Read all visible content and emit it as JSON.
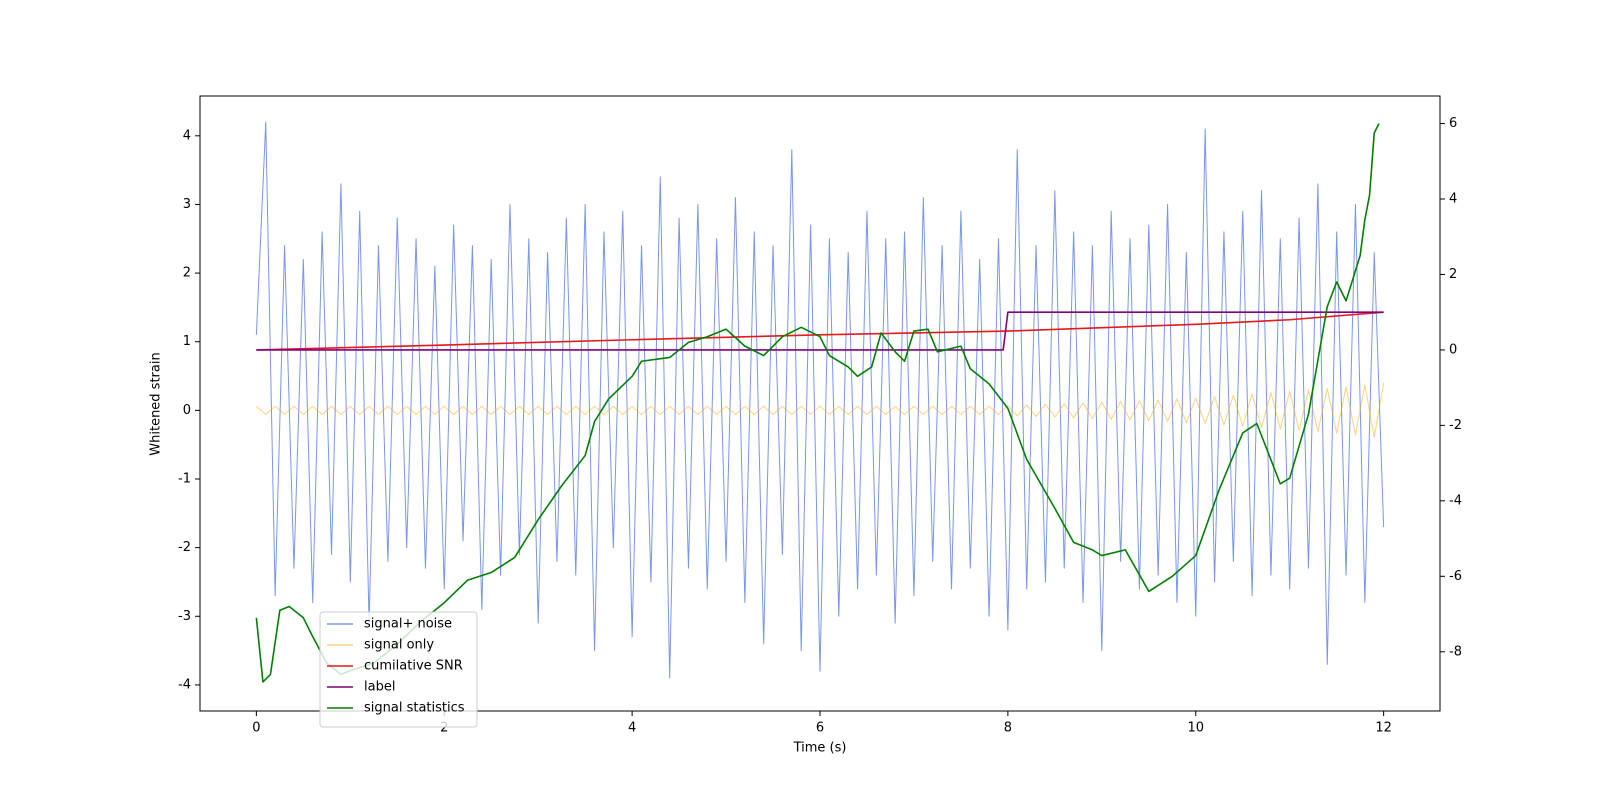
{
  "chart_data": {
    "type": "line",
    "xlabel": "Time (s)",
    "ylabel": "Whitened strain",
    "xlim": [
      -0.6,
      12.6
    ],
    "xticks": [
      0,
      2,
      4,
      6,
      8,
      10,
      12
    ],
    "ylim": [
      -4.38,
      4.58
    ],
    "yticks": [
      -4,
      -3,
      -2,
      -1,
      0,
      1,
      2,
      3,
      4
    ],
    "y2lim": [
      -9.57,
      6.73
    ],
    "y2ticks": [
      -8,
      -6,
      -4,
      -2,
      0,
      2,
      4,
      6
    ],
    "x": [
      0,
      0.1,
      0.2,
      0.3,
      0.4,
      0.5,
      0.6,
      0.7,
      0.8,
      0.9,
      1,
      1.1,
      1.2,
      1.3,
      1.4,
      1.5,
      1.6,
      1.7,
      1.8,
      1.9,
      2,
      2.1,
      2.2,
      2.3,
      2.4,
      2.5,
      2.6,
      2.7,
      2.8,
      2.9,
      3,
      3.1,
      3.2,
      3.3,
      3.4,
      3.5,
      3.6,
      3.7,
      3.8,
      3.9,
      4,
      4.1,
      4.2,
      4.3,
      4.4,
      4.5,
      4.6,
      4.7,
      4.8,
      4.9,
      5,
      5.1,
      5.2,
      5.3,
      5.4,
      5.5,
      5.6,
      5.7,
      5.8,
      5.9,
      6,
      6.1,
      6.2,
      6.3,
      6.4,
      6.5,
      6.6,
      6.7,
      6.8,
      6.9,
      7,
      7.1,
      7.2,
      7.3,
      7.4,
      7.5,
      7.6,
      7.7,
      7.8,
      7.9,
      8,
      8.1,
      8.2,
      8.3,
      8.4,
      8.5,
      8.6,
      8.7,
      8.8,
      8.9,
      9,
      9.1,
      9.2,
      9.3,
      9.4,
      9.5,
      9.6,
      9.7,
      9.8,
      9.9,
      10,
      10.1,
      10.2,
      10.3,
      10.4,
      10.5,
      10.6,
      10.7,
      10.8,
      10.9,
      11,
      11.1,
      11.2,
      11.3,
      11.4,
      11.5,
      11.6,
      11.7,
      11.8,
      11.9,
      12
    ],
    "series": [
      {
        "name": "signal+ noise",
        "color": "#4169e1",
        "values": [
          1.1,
          4.2,
          -2.7,
          2.4,
          -2.3,
          2.2,
          -2.8,
          2.6,
          -2.1,
          3.3,
          -2.5,
          2.9,
          -3.1,
          2.4,
          -2.2,
          2.8,
          -2.0,
          2.5,
          -2.3,
          2.1,
          -2.6,
          2.7,
          -1.9,
          2.4,
          -2.9,
          2.2,
          -2.4,
          3.0,
          -2.1,
          2.5,
          -3.1,
          2.3,
          -2.2,
          2.8,
          -2.4,
          3.0,
          -3.5,
          2.6,
          -2.0,
          2.9,
          -3.3,
          2.4,
          -2.5,
          3.4,
          -3.9,
          2.8,
          -2.3,
          3.0,
          -2.6,
          2.5,
          -2.2,
          3.1,
          -2.8,
          2.6,
          -3.4,
          2.4,
          -2.1,
          3.8,
          -3.5,
          2.7,
          -3.8,
          2.5,
          -3.0,
          2.3,
          -2.6,
          2.9,
          -2.4,
          2.5,
          -3.1,
          2.6,
          -2.7,
          3.1,
          -2.2,
          2.4,
          -2.6,
          2.9,
          -2.3,
          2.2,
          -3.0,
          2.5,
          -3.2,
          3.8,
          -2.6,
          2.4,
          -2.5,
          3.2,
          -2.3,
          2.6,
          -2.8,
          2.4,
          -3.5,
          2.9,
          -2.2,
          2.5,
          -2.6,
          2.7,
          -2.4,
          3.0,
          -2.8,
          2.3,
          -3.0,
          4.1,
          -2.5,
          2.6,
          -2.2,
          2.9,
          -2.7,
          3.2,
          -2.4,
          2.5,
          -2.6,
          2.8,
          -2.3,
          3.3,
          -3.7,
          2.6,
          -2.4,
          3.0,
          -2.8,
          2.3,
          -1.7
        ]
      },
      {
        "name": "signal only",
        "color": "#ffa500",
        "values": [
          0.06,
          -0.06,
          0.06,
          -0.06,
          0.06,
          -0.06,
          0.06,
          -0.06,
          0.06,
          -0.06,
          0.06,
          -0.06,
          0.06,
          -0.06,
          0.06,
          -0.06,
          0.06,
          -0.06,
          0.06,
          -0.06,
          0.06,
          -0.06,
          0.06,
          -0.06,
          0.06,
          -0.06,
          0.06,
          -0.06,
          0.06,
          -0.06,
          0.06,
          -0.06,
          0.06,
          -0.06,
          0.06,
          -0.06,
          0.06,
          -0.06,
          0.06,
          -0.06,
          0.06,
          -0.06,
          0.06,
          -0.06,
          0.06,
          -0.06,
          0.06,
          -0.06,
          0.06,
          -0.06,
          0.06,
          -0.06,
          0.06,
          -0.06,
          0.06,
          -0.06,
          0.06,
          -0.06,
          0.06,
          -0.06,
          0.06,
          -0.06,
          0.06,
          -0.06,
          0.06,
          -0.06,
          0.06,
          -0.06,
          0.06,
          -0.06,
          0.06,
          -0.06,
          0.06,
          -0.06,
          0.06,
          -0.06,
          0.06,
          -0.06,
          0.06,
          -0.06,
          0.07,
          -0.08,
          0.08,
          -0.09,
          0.09,
          -0.1,
          0.1,
          -0.11,
          0.11,
          -0.12,
          0.12,
          -0.13,
          0.13,
          -0.14,
          0.14,
          -0.15,
          0.15,
          -0.16,
          0.17,
          -0.18,
          0.18,
          -0.19,
          0.2,
          -0.21,
          0.22,
          -0.23,
          0.24,
          -0.25,
          0.26,
          -0.27,
          0.28,
          -0.29,
          0.3,
          -0.31,
          0.32,
          -0.33,
          0.34,
          -0.36,
          0.37,
          -0.39,
          0.4
        ]
      },
      {
        "name": "cumilative SNR",
        "color": "#e41a1c",
        "axis": "y2",
        "x": [
          0,
          2,
          4,
          6,
          8,
          10,
          11,
          12
        ],
        "values": [
          0,
          0.13,
          0.27,
          0.4,
          0.5,
          0.68,
          0.8,
          1.0
        ]
      },
      {
        "name": "label",
        "color": "#800080",
        "axis": "y2",
        "x": [
          0,
          7.95,
          8.0,
          12
        ],
        "values": [
          0,
          0,
          1,
          1
        ]
      },
      {
        "name": "signal statistics",
        "color": "#008000",
        "axis": "y2",
        "x": [
          0,
          0.07,
          0.15,
          0.25,
          0.35,
          0.5,
          0.6,
          0.75,
          0.9,
          1.0,
          1.25,
          1.5,
          1.75,
          2.0,
          2.25,
          2.5,
          2.75,
          3.0,
          3.25,
          3.5,
          3.6,
          3.75,
          4.0,
          4.1,
          4.4,
          4.6,
          4.8,
          5.0,
          5.2,
          5.4,
          5.6,
          5.8,
          6.0,
          6.1,
          6.3,
          6.4,
          6.55,
          6.65,
          6.8,
          6.9,
          7.0,
          7.15,
          7.25,
          7.5,
          7.6,
          7.8,
          8.0,
          8.2,
          8.5,
          8.7,
          8.9,
          9.0,
          9.25,
          9.5,
          9.75,
          10.0,
          10.25,
          10.5,
          10.65,
          10.9,
          11.0,
          11.2,
          11.4,
          11.5,
          11.6,
          11.75,
          11.8,
          11.85,
          11.9,
          11.95
        ],
        "values": [
          -7.1,
          -8.8,
          -8.6,
          -6.9,
          -6.8,
          -7.1,
          -7.6,
          -8.3,
          -8.6,
          -8.5,
          -8.3,
          -7.8,
          -7.2,
          -6.7,
          -6.1,
          -5.9,
          -5.5,
          -4.5,
          -3.6,
          -2.8,
          -1.9,
          -1.3,
          -0.7,
          -0.3,
          -0.2,
          0.2,
          0.35,
          0.55,
          0.1,
          -0.15,
          0.35,
          0.6,
          0.35,
          -0.15,
          -0.45,
          -0.7,
          -0.45,
          0.45,
          -0.05,
          -0.3,
          0.5,
          0.55,
          -0.05,
          0.1,
          -0.5,
          -0.9,
          -1.55,
          -2.9,
          -4.2,
          -5.1,
          -5.3,
          -5.45,
          -5.3,
          -6.4,
          -6.0,
          -5.45,
          -3.7,
          -2.2,
          -1.95,
          -3.55,
          -3.4,
          -1.7,
          1.15,
          1.8,
          1.3,
          2.5,
          3.45,
          4.1,
          5.75,
          6.0
        ]
      }
    ]
  }
}
